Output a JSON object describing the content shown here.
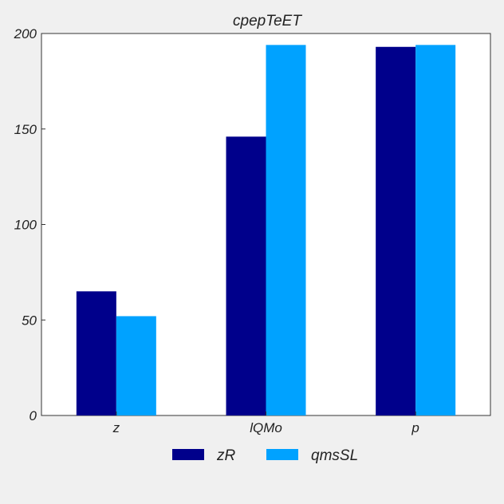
{
  "chart_data": {
    "type": "bar",
    "title": "cpepTeET",
    "xlabel": "",
    "ylabel": "",
    "categories": [
      "z",
      "lQMo",
      "p"
    ],
    "series": [
      {
        "name": "zR",
        "values": [
          65,
          146,
          193
        ],
        "color": "#00008b"
      },
      {
        "name": "qmsSL",
        "values": [
          52,
          194,
          194
        ],
        "color": "#00a2ff"
      }
    ],
    "ylim": [
      0,
      200
    ],
    "yticks": [
      "0",
      "50",
      "100",
      "150",
      "200"
    ],
    "grid": false,
    "legend_position": "bottom-center"
  }
}
